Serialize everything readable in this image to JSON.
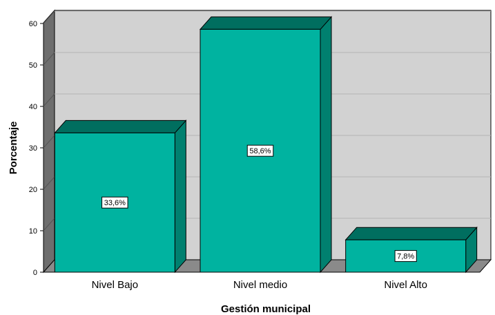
{
  "chart_data": {
    "type": "bar",
    "categories": [
      "Nivel Bajo",
      "Nivel medio",
      "Nivel Alto"
    ],
    "values": [
      33.6,
      58.6,
      7.8
    ],
    "data_labels": [
      "33,6%",
      "58,6%",
      "7,8%"
    ],
    "xlabel": "Gestión municipal",
    "ylabel": "Porcentaje",
    "ylim": [
      0,
      60
    ],
    "yticks": [
      "0",
      "10",
      "20",
      "30",
      "40",
      "50",
      "60"
    ],
    "grid": true,
    "style": "3d-bars",
    "colors": {
      "bar_front": "#00b3a0",
      "bar_top": "#006e5f",
      "bar_side": "#00806f",
      "plot_background": "#d2d2d2",
      "left_wall": "#6e6e6e",
      "floor": "#8a8a8a"
    }
  }
}
